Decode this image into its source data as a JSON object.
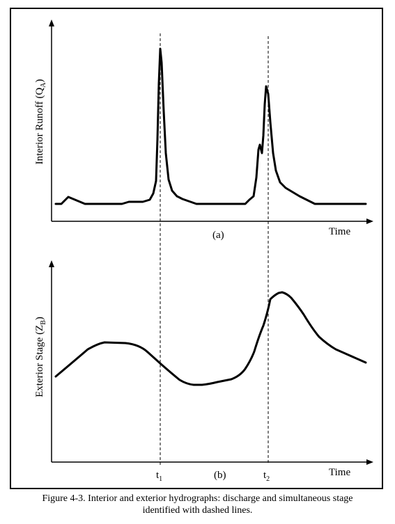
{
  "figure": {
    "panel_a": {
      "ylabel_main": "Interior Runoff (Q",
      "ylabel_sub": "A",
      "xlabel": "Time",
      "tag": "(a)"
    },
    "panel_b": {
      "ylabel_main": "Exterior Stage (Z",
      "ylabel_sub": "B",
      "xlabel": "Time",
      "tag": "(b)"
    },
    "markers": {
      "t1_main": "t",
      "t1_sub": "1",
      "t2_main": "t",
      "t2_sub": "2"
    },
    "caption_line1": "Figure 4-3.  Interior and exterior hydrographs: discharge and simultaneous stage",
    "caption_line2": "identified with dashed lines."
  }
}
